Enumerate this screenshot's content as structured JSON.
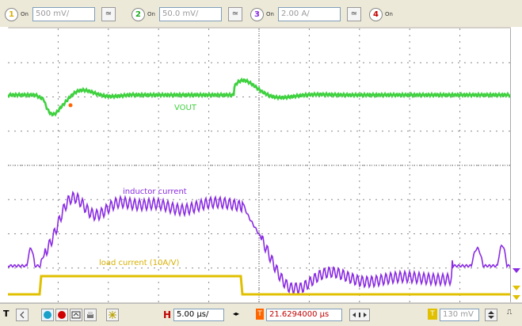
{
  "channels": [
    {
      "num": "1",
      "onoff": "On",
      "scale": "500 mV/",
      "coupling": "≃"
    },
    {
      "num": "2",
      "onoff": "On",
      "scale": "50.0 mV/",
      "coupling": "≃"
    },
    {
      "num": "3",
      "onoff": "On",
      "scale": "2.00 A/",
      "coupling": "≃"
    },
    {
      "num": "4",
      "onoff": "On"
    }
  ],
  "traces": {
    "vout_label": "VOUT",
    "inductor_label": "inductor current",
    "load_label": "load current (10A/V)"
  },
  "bottom": {
    "timebase_prefix": "H",
    "timebase_value": "5.00 µs/",
    "trigger_prefix": "T",
    "trigger_position": "21.6294000 µs",
    "trigger_level_prefix": "T",
    "trigger_level": "130 mV"
  },
  "colors": {
    "vout": "#3ed13e",
    "inductor": "#8a2be2",
    "load": "#e0c000",
    "trigger_marker": "#ff6600"
  }
}
